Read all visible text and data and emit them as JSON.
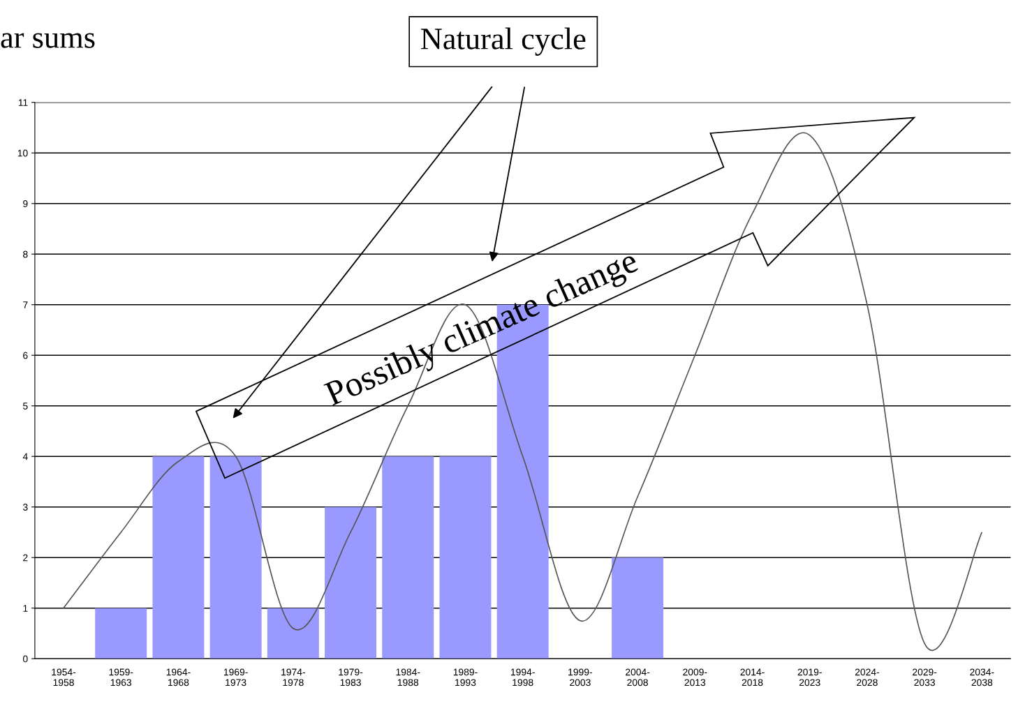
{
  "chart_data": {
    "type": "bar",
    "title": "ar sums",
    "categories": [
      "1954-\n1958",
      "1959-\n1963",
      "1964-\n1968",
      "1969-\n1973",
      "1974-\n1978",
      "1979-\n1983",
      "1984-\n1988",
      "1989-\n1993",
      "1994-\n1998",
      "1999-\n2003",
      "2004-\n2008",
      "2009-\n2013",
      "2014-\n2018",
      "2019-\n2023",
      "2024-\n2028",
      "2029-\n2033",
      "2034-\n2038"
    ],
    "series": [
      {
        "color": "#9999ff",
        "values": [
          0,
          1,
          4,
          4,
          1,
          3,
          4,
          4,
          7,
          0,
          2,
          0,
          0,
          0,
          0,
          0,
          0
        ]
      },
      {
        "type": "line",
        "color": "#555555",
        "values": [
          1.0,
          2.5,
          3.9,
          4.0,
          0.6,
          2.5,
          5.0,
          7.0,
          4.0,
          0.75,
          3.2,
          6.0,
          8.8,
          10.35,
          7.0,
          0.3,
          2.5
        ]
      }
    ],
    "ylim": [
      0,
      11
    ],
    "yticks": [
      0,
      1,
      2,
      3,
      4,
      5,
      6,
      7,
      8,
      9,
      10,
      11
    ],
    "grid": "y",
    "legend": false,
    "annotations": [
      "Natural cycle",
      "Possibly climate change"
    ]
  }
}
